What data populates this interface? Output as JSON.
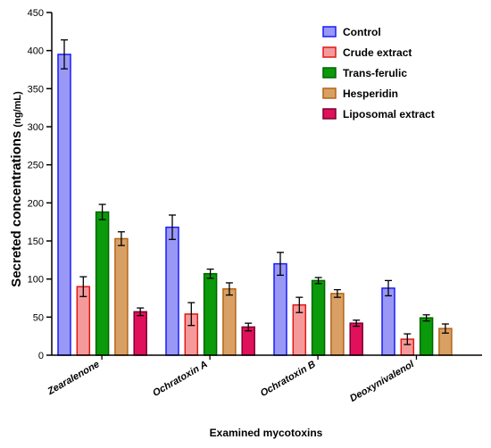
{
  "chart_data": {
    "type": "bar",
    "title": "",
    "xlabel": "Examined mycotoxins",
    "ylabel": "Secreted concentrations",
    "ylabel_unit": "(ng/mL)",
    "ylim": [
      0,
      450
    ],
    "yticks": [
      0,
      50,
      100,
      150,
      200,
      250,
      300,
      350,
      400,
      450
    ],
    "grid": false,
    "legend_position": "top-right",
    "categories": [
      "Zearalenone",
      "Ochratoxin A",
      "Ochratoxin B",
      "Deoxynivalenol"
    ],
    "series": [
      {
        "name": "Control",
        "fill": "#9999f5",
        "stroke": "#1a1aff",
        "values": [
          395,
          168,
          120,
          88
        ],
        "errors": [
          19,
          16,
          15,
          10
        ]
      },
      {
        "name": "Crude extract",
        "fill": "#f59a9a",
        "stroke": "#e01818",
        "values": [
          90,
          54,
          66,
          21
        ],
        "errors": [
          13,
          15,
          10,
          7
        ]
      },
      {
        "name": "Trans-ferulic",
        "fill": "#0a9a0a",
        "stroke": "#006400",
        "values": [
          188,
          107,
          98,
          49
        ],
        "errors": [
          10,
          6,
          4,
          4
        ]
      },
      {
        "name": "Hesperidin",
        "fill": "#d9a066",
        "stroke": "#b46414",
        "values": [
          153,
          87,
          81,
          35
        ],
        "errors": [
          9,
          8,
          5,
          6
        ]
      },
      {
        "name": "Liposomal extract",
        "fill": "#e0105a",
        "stroke": "#7a0030",
        "values": [
          57,
          37,
          42,
          0
        ],
        "errors": [
          5,
          5,
          4,
          0
        ]
      }
    ]
  }
}
